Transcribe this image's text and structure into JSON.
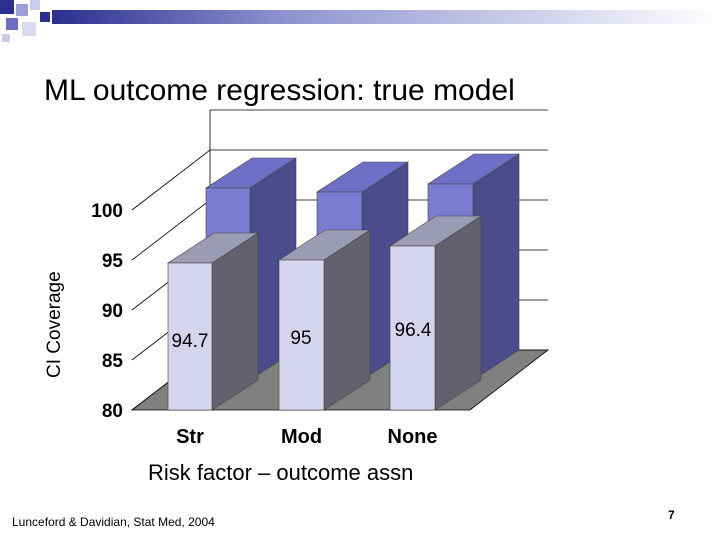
{
  "slide": {
    "title": "ML outcome regression: true model",
    "footer": "Lunceford & Davidian, Stat Med, 2004",
    "page_number": "7"
  },
  "chart_data": {
    "type": "bar",
    "title": "",
    "ylabel": "CI Coverage",
    "xlabel": "Risk factor – outcome assn",
    "categories": [
      "Str",
      "Mod",
      "None"
    ],
    "ylim": [
      80,
      100
    ],
    "yticks": [
      80,
      85,
      90,
      95,
      100
    ],
    "series": [
      {
        "values": [
          94.7,
          95,
          96.4
        ],
        "data_labels": [
          "94.7",
          "95",
          "96.4"
        ],
        "color": "#D4D4EC"
      },
      {
        "values": [
          99.2,
          98.8,
          99.6
        ],
        "color": "#5B5CB0"
      }
    ],
    "grid": true
  },
  "colors": {
    "front_bar": "#D4D4EC",
    "back_bar": "#5B5CB0",
    "floor": "#808080",
    "header_accent": "#2B2F8F"
  }
}
